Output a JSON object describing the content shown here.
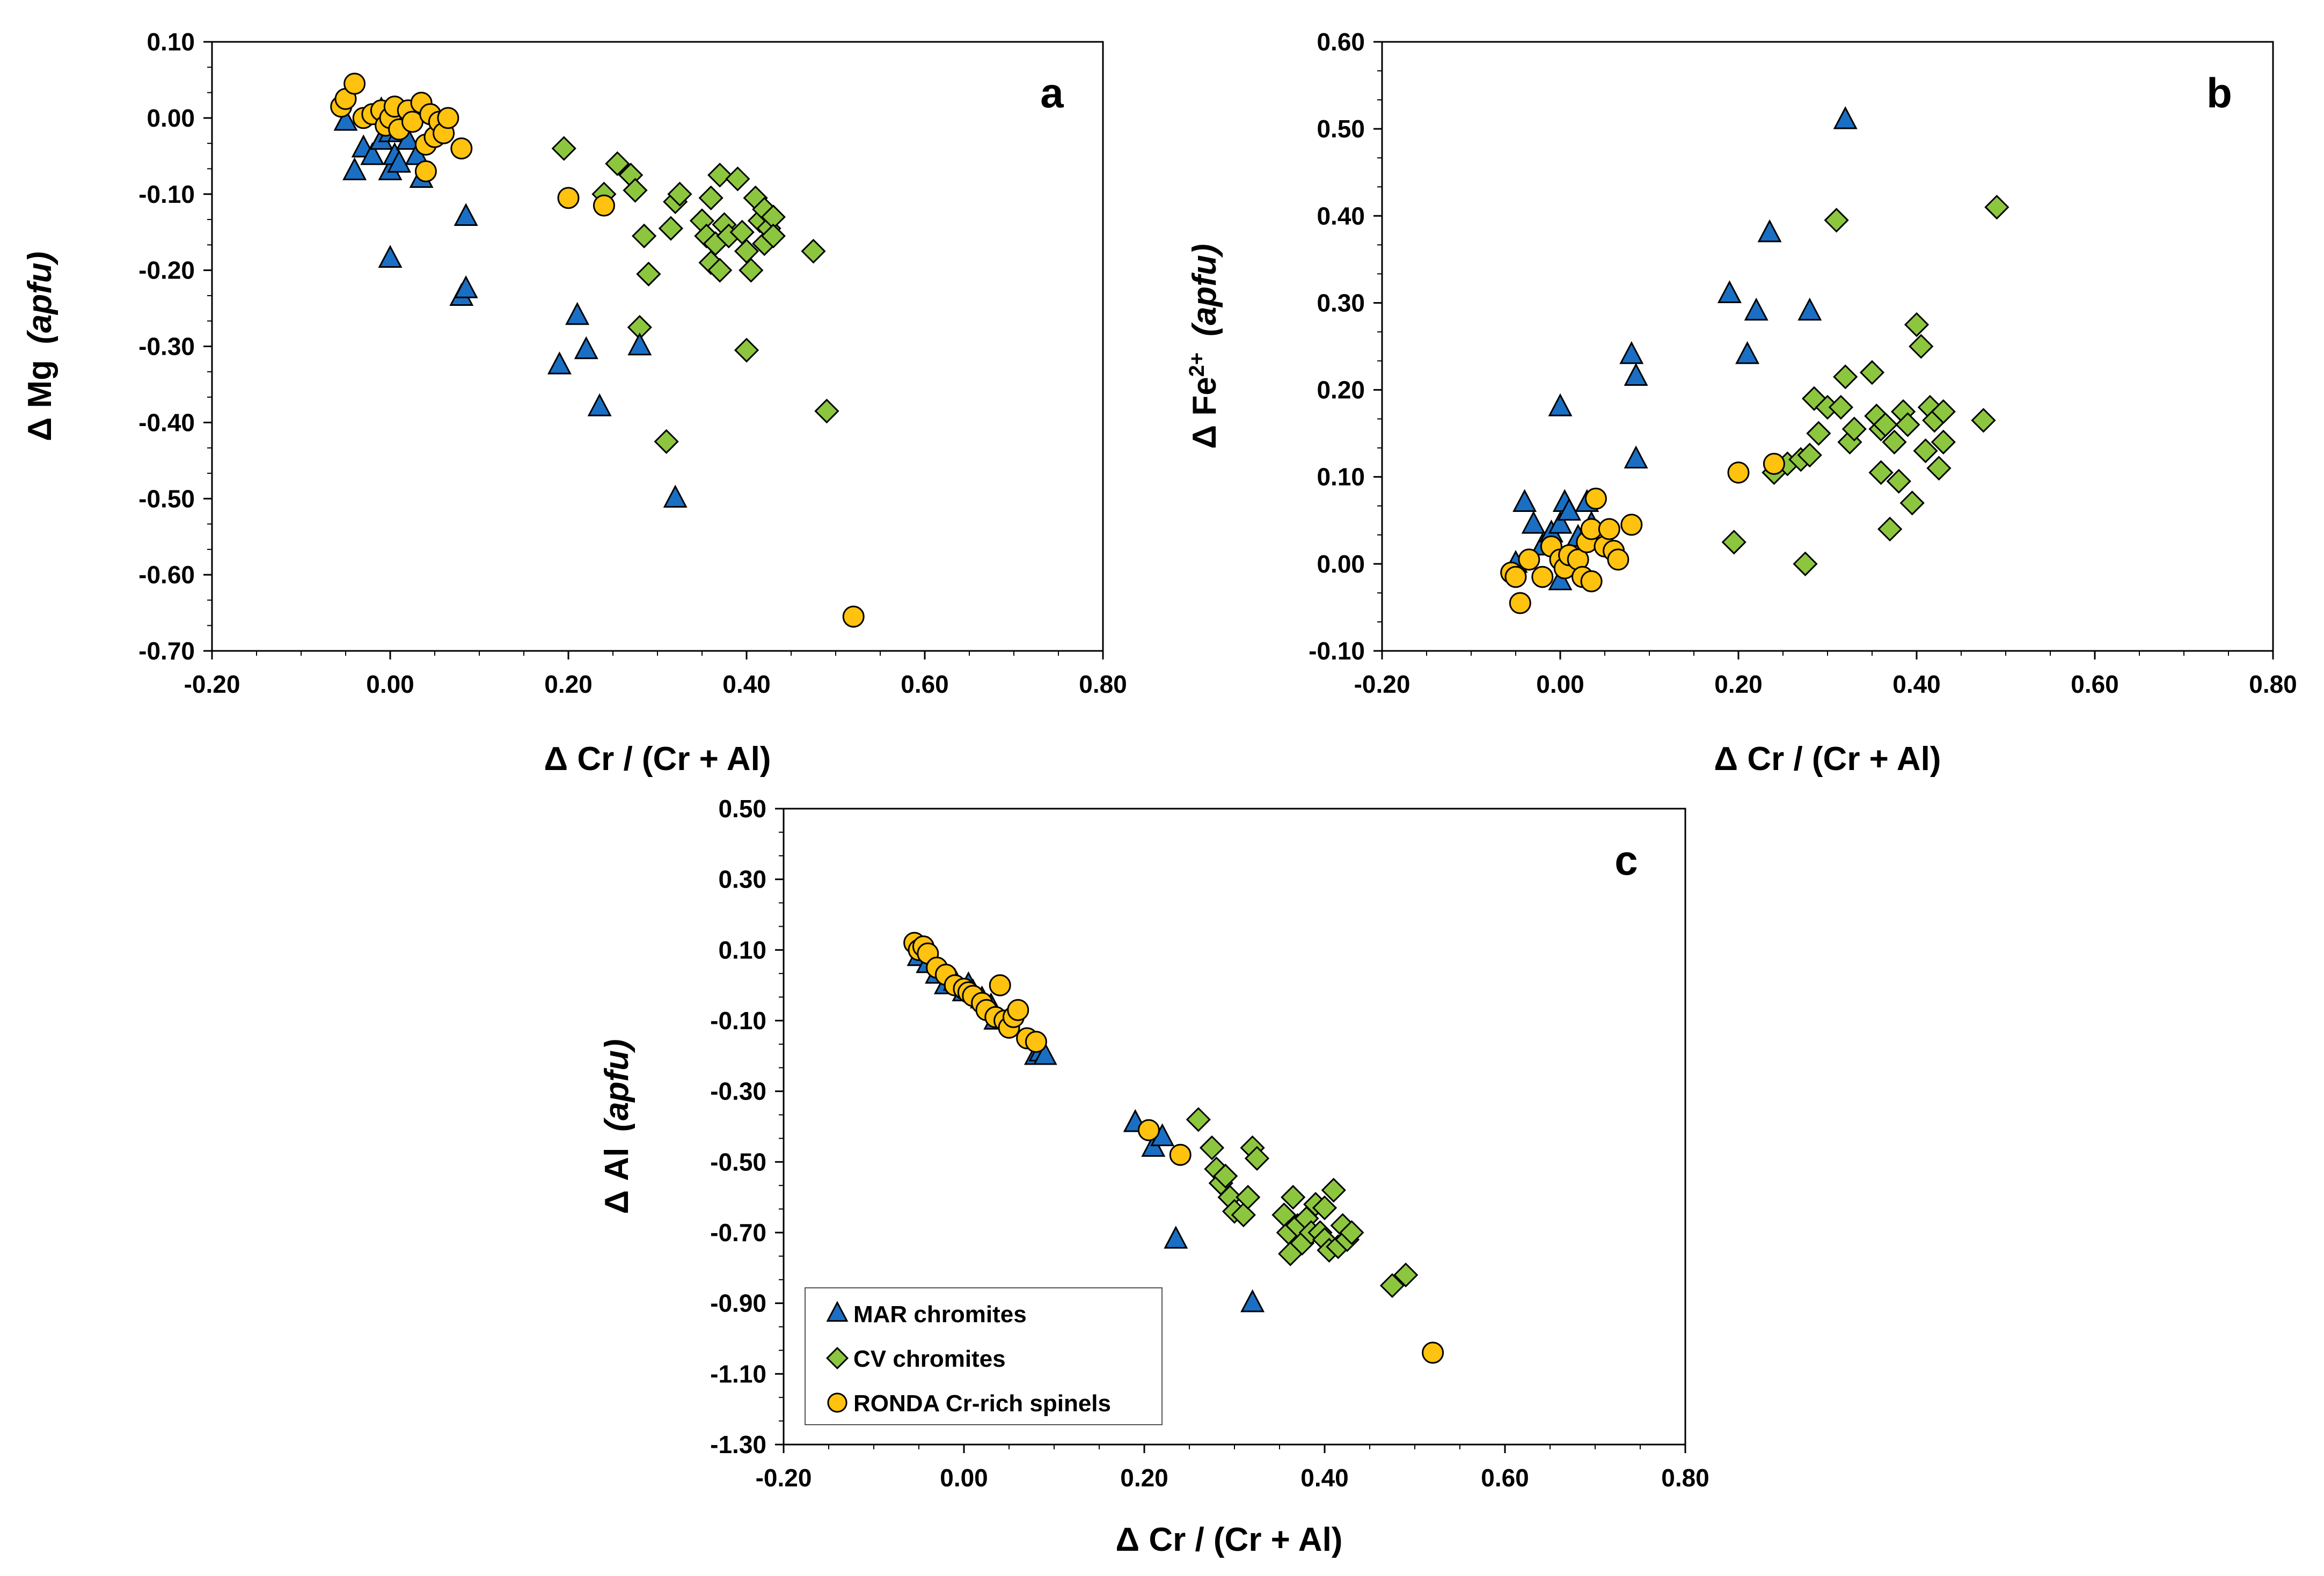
{
  "colors": {
    "mar": "#1a6fc4",
    "cv": "#8cc63f",
    "ronda": "#ffc20e",
    "stroke": "#000000",
    "frame": "#000000",
    "background": "#ffffff"
  },
  "legend": [
    {
      "key": "mar",
      "label": "MAR chromites",
      "marker": "triangle"
    },
    {
      "key": "cv",
      "label": "CV chromites",
      "marker": "diamond"
    },
    {
      "key": "ronda",
      "label": "RONDA Cr-rich spinels",
      "marker": "circle"
    }
  ],
  "chart_data": [
    {
      "id": "a",
      "type": "scatter",
      "panel_letter": "a",
      "xlabel": "Δ Cr / (Cr + Al)",
      "ylabel_main": "Δ Mg",
      "ylabel_italic": "(apfu)",
      "ylabel_sup": "",
      "xlim": [
        -0.2,
        0.8
      ],
      "ylim": [
        -0.7,
        0.1
      ],
      "xticks": [
        "-0.20",
        "0.00",
        "0.20",
        "0.40",
        "0.60",
        "0.80"
      ],
      "yticks": [
        "0.10",
        "0.00",
        "-0.10",
        "-0.20",
        "-0.30",
        "-0.40",
        "-0.50",
        "-0.60",
        "-0.70"
      ],
      "grid": false,
      "series": [
        {
          "key": "mar",
          "points": [
            [
              -0.05,
              -0.005
            ],
            [
              -0.04,
              -0.07
            ],
            [
              -0.03,
              -0.04
            ],
            [
              -0.02,
              -0.05
            ],
            [
              -0.01,
              -0.03
            ],
            [
              -0.01,
              0.01
            ],
            [
              0.0,
              -0.02
            ],
            [
              0.0,
              -0.07
            ],
            [
              0.0,
              0.01
            ],
            [
              0.005,
              -0.05
            ],
            [
              0.01,
              -0.02
            ],
            [
              0.01,
              -0.06
            ],
            [
              0.02,
              -0.03
            ],
            [
              0.03,
              -0.05
            ],
            [
              0.035,
              -0.08
            ],
            [
              0.0,
              -0.185
            ],
            [
              0.08,
              -0.235
            ],
            [
              0.085,
              -0.225
            ],
            [
              0.085,
              -0.13
            ],
            [
              0.19,
              -0.325
            ],
            [
              0.21,
              -0.26
            ],
            [
              0.22,
              -0.305
            ],
            [
              0.235,
              -0.38
            ],
            [
              0.28,
              -0.3
            ],
            [
              0.32,
              -0.5
            ]
          ]
        },
        {
          "key": "cv",
          "points": [
            [
              0.195,
              -0.04
            ],
            [
              0.24,
              -0.1
            ],
            [
              0.255,
              -0.06
            ],
            [
              0.27,
              -0.075
            ],
            [
              0.275,
              -0.095
            ],
            [
              0.28,
              -0.275
            ],
            [
              0.285,
              -0.155
            ],
            [
              0.29,
              -0.205
            ],
            [
              0.31,
              -0.425
            ],
            [
              0.315,
              -0.145
            ],
            [
              0.32,
              -0.11
            ],
            [
              0.325,
              -0.1
            ],
            [
              0.35,
              -0.135
            ],
            [
              0.355,
              -0.155
            ],
            [
              0.36,
              -0.19
            ],
            [
              0.36,
              -0.105
            ],
            [
              0.365,
              -0.165
            ],
            [
              0.37,
              -0.075
            ],
            [
              0.37,
              -0.2
            ],
            [
              0.375,
              -0.14
            ],
            [
              0.38,
              -0.155
            ],
            [
              0.39,
              -0.08
            ],
            [
              0.395,
              -0.15
            ],
            [
              0.4,
              -0.175
            ],
            [
              0.4,
              -0.305
            ],
            [
              0.405,
              -0.2
            ],
            [
              0.41,
              -0.105
            ],
            [
              0.415,
              -0.135
            ],
            [
              0.42,
              -0.12
            ],
            [
              0.42,
              -0.165
            ],
            [
              0.425,
              -0.145
            ],
            [
              0.43,
              -0.13
            ],
            [
              0.43,
              -0.155
            ],
            [
              0.475,
              -0.175
            ],
            [
              0.49,
              -0.385
            ]
          ]
        },
        {
          "key": "ronda",
          "points": [
            [
              -0.055,
              0.015
            ],
            [
              -0.05,
              0.025
            ],
            [
              -0.04,
              0.045
            ],
            [
              -0.03,
              0.0
            ],
            [
              -0.02,
              0.005
            ],
            [
              -0.01,
              0.01
            ],
            [
              -0.005,
              -0.01
            ],
            [
              0.0,
              0.0
            ],
            [
              0.005,
              0.015
            ],
            [
              0.01,
              -0.015
            ],
            [
              0.02,
              0.01
            ],
            [
              0.025,
              -0.005
            ],
            [
              0.035,
              0.02
            ],
            [
              0.04,
              -0.035
            ],
            [
              0.04,
              -0.07
            ],
            [
              0.045,
              0.005
            ],
            [
              0.05,
              -0.025
            ],
            [
              0.055,
              -0.005
            ],
            [
              0.06,
              -0.02
            ],
            [
              0.065,
              0.0
            ],
            [
              0.08,
              -0.04
            ],
            [
              0.2,
              -0.105
            ],
            [
              0.24,
              -0.115
            ],
            [
              0.52,
              -0.655
            ]
          ]
        }
      ]
    },
    {
      "id": "b",
      "type": "scatter",
      "panel_letter": "b",
      "xlabel": "Δ Cr / (Cr + Al)",
      "ylabel_main": "Δ Fe",
      "ylabel_sup": "2+",
      "ylabel_italic": "(apfu)",
      "xlim": [
        -0.2,
        0.8
      ],
      "ylim": [
        -0.1,
        0.6
      ],
      "xticks": [
        "-0.20",
        "0.00",
        "0.20",
        "0.40",
        "0.60",
        "0.80"
      ],
      "yticks": [
        "0.60",
        "0.50",
        "0.40",
        "0.30",
        "0.20",
        "0.10",
        "0.00",
        "-0.10"
      ],
      "grid": false,
      "series": [
        {
          "key": "mar",
          "points": [
            [
              -0.05,
              0.0
            ],
            [
              -0.04,
              0.07
            ],
            [
              -0.03,
              0.045
            ],
            [
              -0.02,
              0.02
            ],
            [
              -0.01,
              0.035
            ],
            [
              0.0,
              0.045
            ],
            [
              0.0,
              -0.02
            ],
            [
              0.005,
              0.07
            ],
            [
              0.01,
              0.06
            ],
            [
              0.02,
              0.03
            ],
            [
              0.03,
              0.07
            ],
            [
              0.035,
              0.045
            ],
            [
              0.0,
              0.18
            ],
            [
              0.08,
              0.24
            ],
            [
              0.085,
              0.215
            ],
            [
              0.085,
              0.12
            ],
            [
              0.19,
              0.31
            ],
            [
              0.21,
              0.24
            ],
            [
              0.22,
              0.29
            ],
            [
              0.235,
              0.38
            ],
            [
              0.28,
              0.29
            ],
            [
              0.32,
              0.51
            ]
          ]
        },
        {
          "key": "cv",
          "points": [
            [
              0.195,
              0.025
            ],
            [
              0.24,
              0.105
            ],
            [
              0.255,
              0.115
            ],
            [
              0.27,
              0.12
            ],
            [
              0.275,
              0.0
            ],
            [
              0.28,
              0.125
            ],
            [
              0.285,
              0.19
            ],
            [
              0.29,
              0.15
            ],
            [
              0.3,
              0.18
            ],
            [
              0.31,
              0.395
            ],
            [
              0.315,
              0.18
            ],
            [
              0.32,
              0.215
            ],
            [
              0.325,
              0.14
            ],
            [
              0.33,
              0.155
            ],
            [
              0.35,
              0.22
            ],
            [
              0.355,
              0.17
            ],
            [
              0.36,
              0.155
            ],
            [
              0.36,
              0.105
            ],
            [
              0.365,
              0.16
            ],
            [
              0.37,
              0.04
            ],
            [
              0.375,
              0.14
            ],
            [
              0.38,
              0.095
            ],
            [
              0.385,
              0.175
            ],
            [
              0.39,
              0.16
            ],
            [
              0.395,
              0.07
            ],
            [
              0.4,
              0.275
            ],
            [
              0.405,
              0.25
            ],
            [
              0.41,
              0.13
            ],
            [
              0.415,
              0.18
            ],
            [
              0.42,
              0.165
            ],
            [
              0.425,
              0.11
            ],
            [
              0.43,
              0.175
            ],
            [
              0.43,
              0.14
            ],
            [
              0.475,
              0.165
            ],
            [
              0.49,
              0.41
            ]
          ]
        },
        {
          "key": "ronda",
          "points": [
            [
              -0.055,
              -0.01
            ],
            [
              -0.05,
              -0.015
            ],
            [
              -0.045,
              -0.045
            ],
            [
              -0.035,
              0.005
            ],
            [
              -0.02,
              -0.015
            ],
            [
              -0.01,
              0.02
            ],
            [
              0.0,
              0.005
            ],
            [
              0.005,
              -0.005
            ],
            [
              0.01,
              0.01
            ],
            [
              0.02,
              0.005
            ],
            [
              0.025,
              -0.015
            ],
            [
              0.03,
              0.025
            ],
            [
              0.035,
              -0.02
            ],
            [
              0.035,
              0.04
            ],
            [
              0.04,
              0.075
            ],
            [
              0.05,
              0.02
            ],
            [
              0.055,
              0.04
            ],
            [
              0.06,
              0.015
            ],
            [
              0.065,
              0.005
            ],
            [
              0.08,
              0.045
            ],
            [
              0.2,
              0.105
            ],
            [
              0.24,
              0.115
            ]
          ]
        }
      ]
    },
    {
      "id": "c",
      "type": "scatter",
      "panel_letter": "c",
      "xlabel": "Δ Cr / (Cr + Al)",
      "ylabel_main": "Δ Al",
      "ylabel_sup": "",
      "ylabel_italic": "(apfu)",
      "xlim": [
        -0.2,
        0.8
      ],
      "ylim": [
        -1.3,
        0.5
      ],
      "xticks": [
        "-0.20",
        "0.00",
        "0.20",
        "0.40",
        "0.60",
        "0.80"
      ],
      "yticks": [
        "0.50",
        "0.30",
        "0.10",
        "-0.10",
        "-0.30",
        "-0.50",
        "-0.70",
        "-0.90",
        "-1.10",
        "-1.30"
      ],
      "grid": false,
      "legend_position": "bottom-left",
      "series": [
        {
          "key": "mar",
          "points": [
            [
              -0.05,
              0.08
            ],
            [
              -0.04,
              0.06
            ],
            [
              -0.03,
              0.03
            ],
            [
              -0.02,
              0.0
            ],
            [
              -0.01,
              0.01
            ],
            [
              0.0,
              -0.02
            ],
            [
              0.005,
              0.0
            ],
            [
              0.01,
              -0.02
            ],
            [
              0.02,
              -0.04
            ],
            [
              0.03,
              -0.06
            ],
            [
              0.035,
              -0.1
            ],
            [
              0.08,
              -0.2
            ],
            [
              0.085,
              -0.19
            ],
            [
              0.09,
              -0.2
            ],
            [
              0.19,
              -0.39
            ],
            [
              0.21,
              -0.46
            ],
            [
              0.22,
              -0.43
            ],
            [
              0.235,
              -0.72
            ],
            [
              0.32,
              -0.9
            ]
          ]
        },
        {
          "key": "cv",
          "points": [
            [
              0.26,
              -0.38
            ],
            [
              0.275,
              -0.46
            ],
            [
              0.28,
              -0.52
            ],
            [
              0.285,
              -0.56
            ],
            [
              0.29,
              -0.54
            ],
            [
              0.295,
              -0.6
            ],
            [
              0.3,
              -0.64
            ],
            [
              0.31,
              -0.65
            ],
            [
              0.315,
              -0.6
            ],
            [
              0.32,
              -0.46
            ],
            [
              0.325,
              -0.49
            ],
            [
              0.355,
              -0.65
            ],
            [
              0.36,
              -0.7
            ],
            [
              0.362,
              -0.76
            ],
            [
              0.365,
              -0.6
            ],
            [
              0.37,
              -0.68
            ],
            [
              0.375,
              -0.73
            ],
            [
              0.38,
              -0.66
            ],
            [
              0.385,
              -0.7
            ],
            [
              0.39,
              -0.62
            ],
            [
              0.395,
              -0.7
            ],
            [
              0.4,
              -0.72
            ],
            [
              0.4,
              -0.63
            ],
            [
              0.405,
              -0.75
            ],
            [
              0.41,
              -0.58
            ],
            [
              0.415,
              -0.74
            ],
            [
              0.42,
              -0.68
            ],
            [
              0.425,
              -0.72
            ],
            [
              0.43,
              -0.7
            ],
            [
              0.475,
              -0.85
            ],
            [
              0.49,
              -0.82
            ]
          ]
        },
        {
          "key": "ronda",
          "points": [
            [
              -0.055,
              0.12
            ],
            [
              -0.05,
              0.1
            ],
            [
              -0.045,
              0.11
            ],
            [
              -0.04,
              0.09
            ],
            [
              -0.03,
              0.05
            ],
            [
              -0.02,
              0.03
            ],
            [
              -0.01,
              0.0
            ],
            [
              0.0,
              -0.01
            ],
            [
              0.005,
              -0.02
            ],
            [
              0.01,
              -0.03
            ],
            [
              0.02,
              -0.05
            ],
            [
              0.025,
              -0.07
            ],
            [
              0.035,
              -0.09
            ],
            [
              0.04,
              0.0
            ],
            [
              0.045,
              -0.1
            ],
            [
              0.05,
              -0.12
            ],
            [
              0.055,
              -0.09
            ],
            [
              0.06,
              -0.07
            ],
            [
              0.07,
              -0.15
            ],
            [
              0.08,
              -0.16
            ],
            [
              0.205,
              -0.41
            ],
            [
              0.24,
              -0.48
            ],
            [
              0.52,
              -1.04
            ]
          ]
        }
      ]
    }
  ]
}
